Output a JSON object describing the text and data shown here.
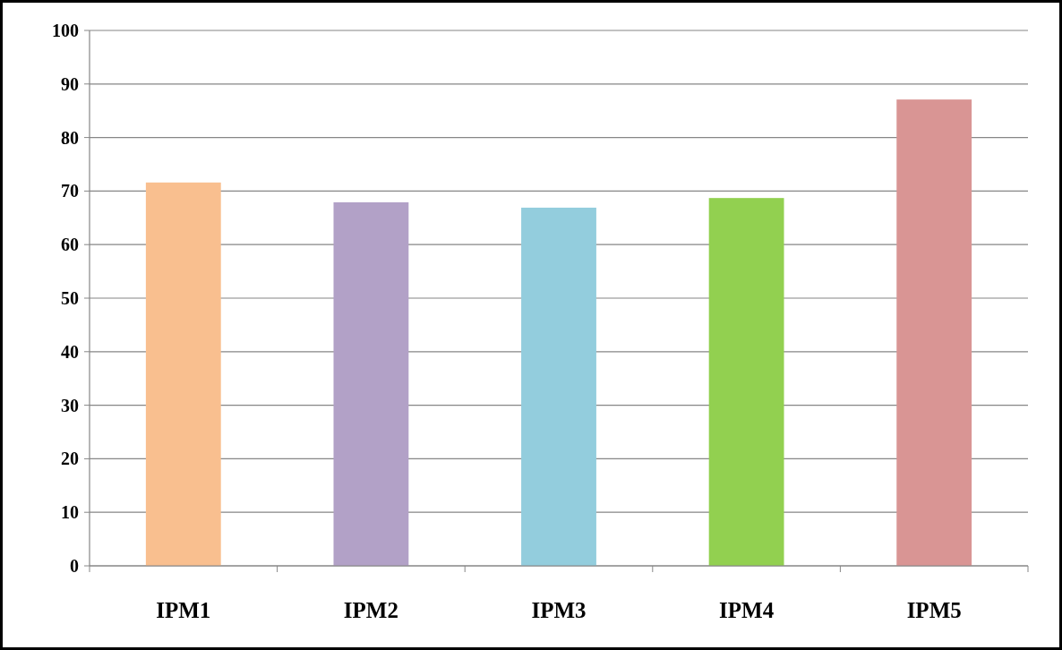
{
  "chart_data": {
    "type": "bar",
    "categories": [
      "IPM1",
      "IPM2",
      "IPM3",
      "IPM4",
      "IPM5"
    ],
    "values": [
      71.6,
      67.9,
      66.9,
      68.7,
      87.1
    ],
    "colors": [
      "#f9bf8f",
      "#b2a1c7",
      "#93cddd",
      "#92d050",
      "#d99594"
    ],
    "ylim": [
      0,
      100
    ],
    "yticks": [
      0,
      10,
      20,
      30,
      40,
      50,
      60,
      70,
      80,
      90,
      100
    ],
    "grid": "y"
  }
}
